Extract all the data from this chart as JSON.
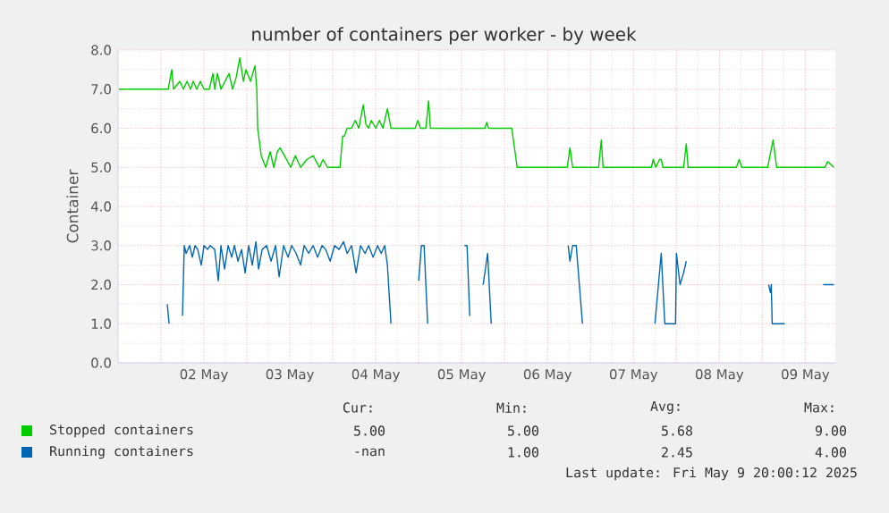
{
  "chart_data": {
    "type": "line",
    "title": "number of containers per worker - by week",
    "ylabel": "Container",
    "xlim": [
      "2025-05-01T12:00",
      "2025-05-09T20:24"
    ],
    "ylim": [
      0,
      8
    ],
    "xticks": [
      {
        "value": "2025-05-02",
        "label": null
      },
      {
        "value": "2025-05-02T12:00",
        "label": "02 May"
      },
      {
        "value": "2025-05-03",
        "label": null
      },
      {
        "value": "2025-05-03T12:00",
        "label": "03 May"
      },
      {
        "value": "2025-05-04",
        "label": null
      },
      {
        "value": "2025-05-04T12:00",
        "label": "04 May"
      },
      {
        "value": "2025-05-05",
        "label": null
      },
      {
        "value": "2025-05-05T12:00",
        "label": "05 May"
      },
      {
        "value": "2025-05-06",
        "label": null
      },
      {
        "value": "2025-05-06T12:00",
        "label": "06 May"
      },
      {
        "value": "2025-05-07",
        "label": null
      },
      {
        "value": "2025-05-07T12:00",
        "label": "07 May"
      },
      {
        "value": "2025-05-08",
        "label": null
      },
      {
        "value": "2025-05-08T12:00",
        "label": "08 May"
      },
      {
        "value": "2025-05-09",
        "label": null
      },
      {
        "value": "2025-05-09T12:00",
        "label": "09 May"
      }
    ],
    "yticks": [
      {
        "value": 0,
        "label": "0.0"
      },
      {
        "value": 1,
        "label": "1.0"
      },
      {
        "value": 2,
        "label": "2.0"
      },
      {
        "value": 3,
        "label": "3.0"
      },
      {
        "value": 4,
        "label": "4.0"
      },
      {
        "value": 5,
        "label": "5.0"
      },
      {
        "value": 6,
        "label": "6.0"
      },
      {
        "value": 7,
        "label": "7.0"
      },
      {
        "value": 8,
        "label": "8.0"
      }
    ],
    "grid": true,
    "legend": "bottom",
    "marker": "none",
    "line_style": "solid",
    "series": [
      {
        "name": "Stopped containers",
        "color": "#00cc00",
        "x": [
          "2025-05-01T12:15",
          "2025-05-02T02:00",
          "2025-05-02T03:00",
          "2025-05-02T03:30",
          "2025-05-02T05:15",
          "2025-05-02T06:15",
          "2025-05-02T07:15",
          "2025-05-02T08:15",
          "2025-05-02T09:00",
          "2025-05-02T10:00",
          "2025-05-02T11:00",
          "2025-05-02T12:00",
          "2025-05-02T13:30",
          "2025-05-02T14:30",
          "2025-05-02T15:00",
          "2025-05-02T15:45",
          "2025-05-02T16:45",
          "2025-05-02T19:00",
          "2025-05-02T20:00",
          "2025-05-02T21:00",
          "2025-05-02T22:00",
          "2025-05-02T23:00",
          "2025-05-02T23:45",
          "2025-05-03T01:00",
          "2025-05-03T02:15",
          "2025-05-03T02:45",
          "2025-05-03T03:00",
          "2025-05-03T04:00",
          "2025-05-03T05:15",
          "2025-05-03T06:30",
          "2025-05-03T07:30",
          "2025-05-03T08:30",
          "2025-05-03T09:15",
          "2025-05-03T10:30",
          "2025-05-03T12:15",
          "2025-05-03T13:30",
          "2025-05-03T15:00",
          "2025-05-03T16:45",
          "2025-05-03T18:30",
          "2025-05-03T20:15",
          "2025-05-03T21:15",
          "2025-05-03T22:30",
          "2025-05-04T02:00",
          "2025-05-04T02:45",
          "2025-05-04T03:15",
          "2025-05-04T04:00",
          "2025-05-04T05:15",
          "2025-05-04T06:15",
          "2025-05-04T07:15",
          "2025-05-04T08:30",
          "2025-05-04T09:15",
          "2025-05-04T10:00",
          "2025-05-04T10:45",
          "2025-05-04T12:00",
          "2025-05-04T13:00",
          "2025-05-04T14:00",
          "2025-05-04T15:15",
          "2025-05-04T16:15",
          "2025-05-04T23:00",
          "2025-05-04T23:45",
          "2025-05-05T00:30",
          "2025-05-05T02:00",
          "2025-05-05T02:45",
          "2025-05-05T03:15",
          "2025-05-05T18:30",
          "2025-05-05T19:00",
          "2025-05-05T19:30",
          "2025-05-06T02:00",
          "2025-05-06T03:30",
          "2025-05-06T17:30",
          "2025-05-06T18:15",
          "2025-05-06T19:00",
          "2025-05-07T02:15",
          "2025-05-07T03:00",
          "2025-05-07T03:30",
          "2025-05-07T17:00",
          "2025-05-07T17:30",
          "2025-05-07T18:15",
          "2025-05-07T19:15",
          "2025-05-07T19:45",
          "2025-05-07T20:15",
          "2025-05-08T02:00",
          "2025-05-08T02:45",
          "2025-05-08T03:15",
          "2025-05-08T16:45",
          "2025-05-08T17:30",
          "2025-05-08T18:15",
          "2025-05-09T01:30",
          "2025-05-09T03:00",
          "2025-05-09T04:00",
          "2025-05-09T17:30",
          "2025-05-09T18:15",
          "2025-05-09T20:00"
        ],
        "values": [
          7.0,
          7.0,
          7.5,
          7.0,
          7.2,
          7.0,
          7.2,
          7.0,
          7.2,
          7.0,
          7.2,
          7.0,
          7.0,
          7.4,
          7.0,
          7.4,
          7.0,
          7.4,
          7.0,
          7.3,
          7.8,
          7.2,
          7.5,
          7.2,
          7.6,
          7.0,
          6.0,
          5.3,
          5.0,
          5.4,
          5.0,
          5.4,
          5.5,
          5.3,
          5.0,
          5.3,
          5.0,
          5.2,
          5.3,
          5.0,
          5.2,
          5.0,
          5.0,
          5.8,
          5.8,
          6.0,
          6.0,
          6.2,
          6.0,
          6.6,
          6.1,
          6.0,
          6.2,
          6.0,
          6.2,
          6.0,
          6.5,
          6.0,
          6.0,
          6.2,
          6.0,
          6.0,
          6.7,
          6.0,
          6.0,
          6.15,
          6.0,
          6.0,
          5.0,
          5.0,
          5.5,
          5.0,
          5.0,
          5.7,
          5.0,
          5.0,
          5.2,
          5.0,
          5.2,
          5.2,
          5.0,
          5.0,
          5.6,
          5.0,
          5.0,
          5.2,
          5.0,
          5.0,
          5.7,
          5.0,
          5.0,
          5.15,
          5.0
        ]
      },
      {
        "name": "Running containers",
        "color": "#0066b3",
        "x": [
          "2025-05-02T01:45",
          "2025-05-02T02:15",
          "2025-05-02T04:00",
          "2025-05-02T06:00",
          "2025-05-02T06:30",
          "2025-05-02T07:00",
          "2025-05-02T08:00",
          "2025-05-02T08:45",
          "2025-05-02T09:30",
          "2025-05-02T10:15",
          "2025-05-02T11:15",
          "2025-05-02T12:00",
          "2025-05-02T13:00",
          "2025-05-02T13:45",
          "2025-05-02T15:00",
          "2025-05-02T16:00",
          "2025-05-02T16:45",
          "2025-05-02T17:45",
          "2025-05-02T18:45",
          "2025-05-02T19:45",
          "2025-05-02T20:30",
          "2025-05-02T21:30",
          "2025-05-02T22:30",
          "2025-05-02T23:30",
          "2025-05-03T00:30",
          "2025-05-03T01:30",
          "2025-05-03T02:30",
          "2025-05-03T03:15",
          "2025-05-03T04:15",
          "2025-05-03T05:30",
          "2025-05-03T06:45",
          "2025-05-03T08:00",
          "2025-05-03T09:00",
          "2025-05-03T10:15",
          "2025-05-03T11:30",
          "2025-05-03T12:30",
          "2025-05-03T13:45",
          "2025-05-03T15:00",
          "2025-05-03T16:00",
          "2025-05-03T17:15",
          "2025-05-03T18:30",
          "2025-05-03T19:45",
          "2025-05-03T21:00",
          "2025-05-03T22:00",
          "2025-05-03T23:15",
          "2025-05-04T00:30",
          "2025-05-04T01:45",
          "2025-05-04T03:00",
          "2025-05-04T04:00",
          "2025-05-04T05:15",
          "2025-05-04T06:30",
          "2025-05-04T07:45",
          "2025-05-04T09:00",
          "2025-05-04T10:00",
          "2025-05-04T11:15",
          "2025-05-04T12:30",
          "2025-05-04T13:30",
          "2025-05-04T14:30",
          "2025-05-04T15:15",
          "2025-05-04T16:15",
          "2025-05-04T20:15",
          "2025-05-05T00:00",
          "2025-05-05T00:45",
          "2025-05-05T01:30",
          "2025-05-05T02:30",
          "2025-05-05T07:15",
          "2025-05-05T12:45",
          "2025-05-05T13:30",
          "2025-05-05T14:15",
          "2025-05-05T16:00",
          "2025-05-05T18:00",
          "2025-05-05T19:15",
          "2025-05-05T20:15",
          "2025-05-06T07:15",
          "2025-05-06T17:45",
          "2025-05-06T18:15",
          "2025-05-06T19:00",
          "2025-05-06T20:00",
          "2025-05-06T21:45",
          "2025-05-07T07:15",
          "2025-05-07T18:00",
          "2025-05-07T19:45",
          "2025-05-07T20:45",
          "2025-05-07T23:45",
          "2025-05-08T00:00",
          "2025-05-08T01:00",
          "2025-05-08T02:00",
          "2025-05-08T02:45",
          "2025-05-08T14:30",
          "2025-05-09T01:45",
          "2025-05-09T02:15",
          "2025-05-09T02:30",
          "2025-05-09T02:45",
          "2025-05-09T06:15",
          "2025-05-09T12:00",
          "2025-05-09T17:00",
          "2025-05-09T20:00"
        ],
        "values": [
          1.5,
          1.0,
          null,
          1.2,
          3.0,
          2.8,
          3.0,
          2.7,
          3.0,
          2.9,
          2.5,
          3.0,
          2.9,
          3.0,
          2.9,
          2.1,
          3.0,
          2.4,
          3.0,
          2.7,
          3.0,
          2.6,
          2.9,
          2.3,
          3.0,
          2.5,
          3.1,
          2.4,
          2.9,
          3.0,
          2.6,
          3.0,
          2.2,
          3.0,
          2.7,
          3.0,
          2.8,
          2.5,
          3.0,
          2.8,
          3.0,
          2.7,
          3.0,
          2.9,
          2.6,
          3.0,
          2.9,
          3.1,
          2.8,
          3.0,
          2.3,
          3.0,
          2.8,
          3.0,
          2.7,
          3.0,
          2.8,
          3.0,
          2.5,
          1.0,
          null,
          2.1,
          3.0,
          3.0,
          1.0,
          null,
          3.0,
          3.0,
          1.2,
          null,
          2.0,
          2.8,
          1.0,
          null,
          3.0,
          2.6,
          3.0,
          3.0,
          1.0,
          null,
          1.0,
          2.8,
          1.0,
          1.0,
          2.8,
          2.0,
          2.3,
          2.6,
          null,
          2.0,
          1.8,
          2.0,
          1.0,
          1.0,
          null,
          2.0,
          2.0
        ]
      }
    ],
    "annotations": [
      "Cur:",
      "Min:",
      "Avg:",
      "Max:",
      "5.00",
      "5.00",
      "5.68",
      "9.00",
      "-nan",
      "1.00",
      "2.45",
      "4.00",
      "Last update: Fri May  9 20:00:12 2025"
    ]
  }
}
